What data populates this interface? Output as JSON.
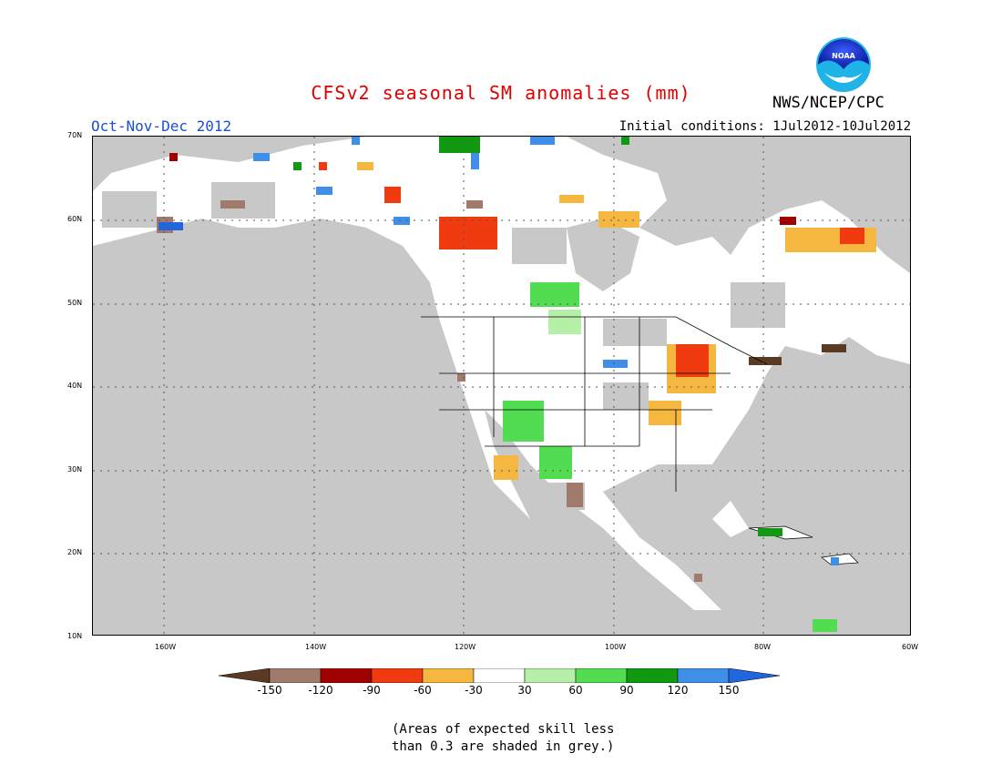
{
  "title": "CFSv2 seasonal SM anomalies (mm)",
  "period": "Oct-Nov-Dec 2012",
  "initial_conditions": "Initial conditions: 1Jul2012-10Jul2012",
  "agency": "NWS/NCEP/CPC",
  "logo_text": "NOAA",
  "lat_labels": [
    "70N",
    "60N",
    "50N",
    "40N",
    "30N",
    "20N",
    "10N"
  ],
  "lon_labels": [
    "160W",
    "140W",
    "120W",
    "100W",
    "80W",
    "60W"
  ],
  "legend": {
    "thresholds": [
      "-150",
      "-120",
      "-90",
      "-60",
      "-30",
      "30",
      "60",
      "90",
      "120",
      "150"
    ],
    "colors": [
      "#5a3a22",
      "#a07a6a",
      "#a00000",
      "#f03a10",
      "#f6b740",
      "#ffffff",
      "#b6f0a8",
      "#52dc52",
      "#119911",
      "#3f8fe8",
      "#2266dd"
    ]
  },
  "colors": {
    "skill_mask": "#c8c8c8",
    "land": "#ffffff",
    "ocean": "#c8c8c8",
    "grid": "#555555"
  },
  "note_lines": [
    "(Areas of expected skill less",
    "than 0.3 are shaded in grey.)"
  ]
}
